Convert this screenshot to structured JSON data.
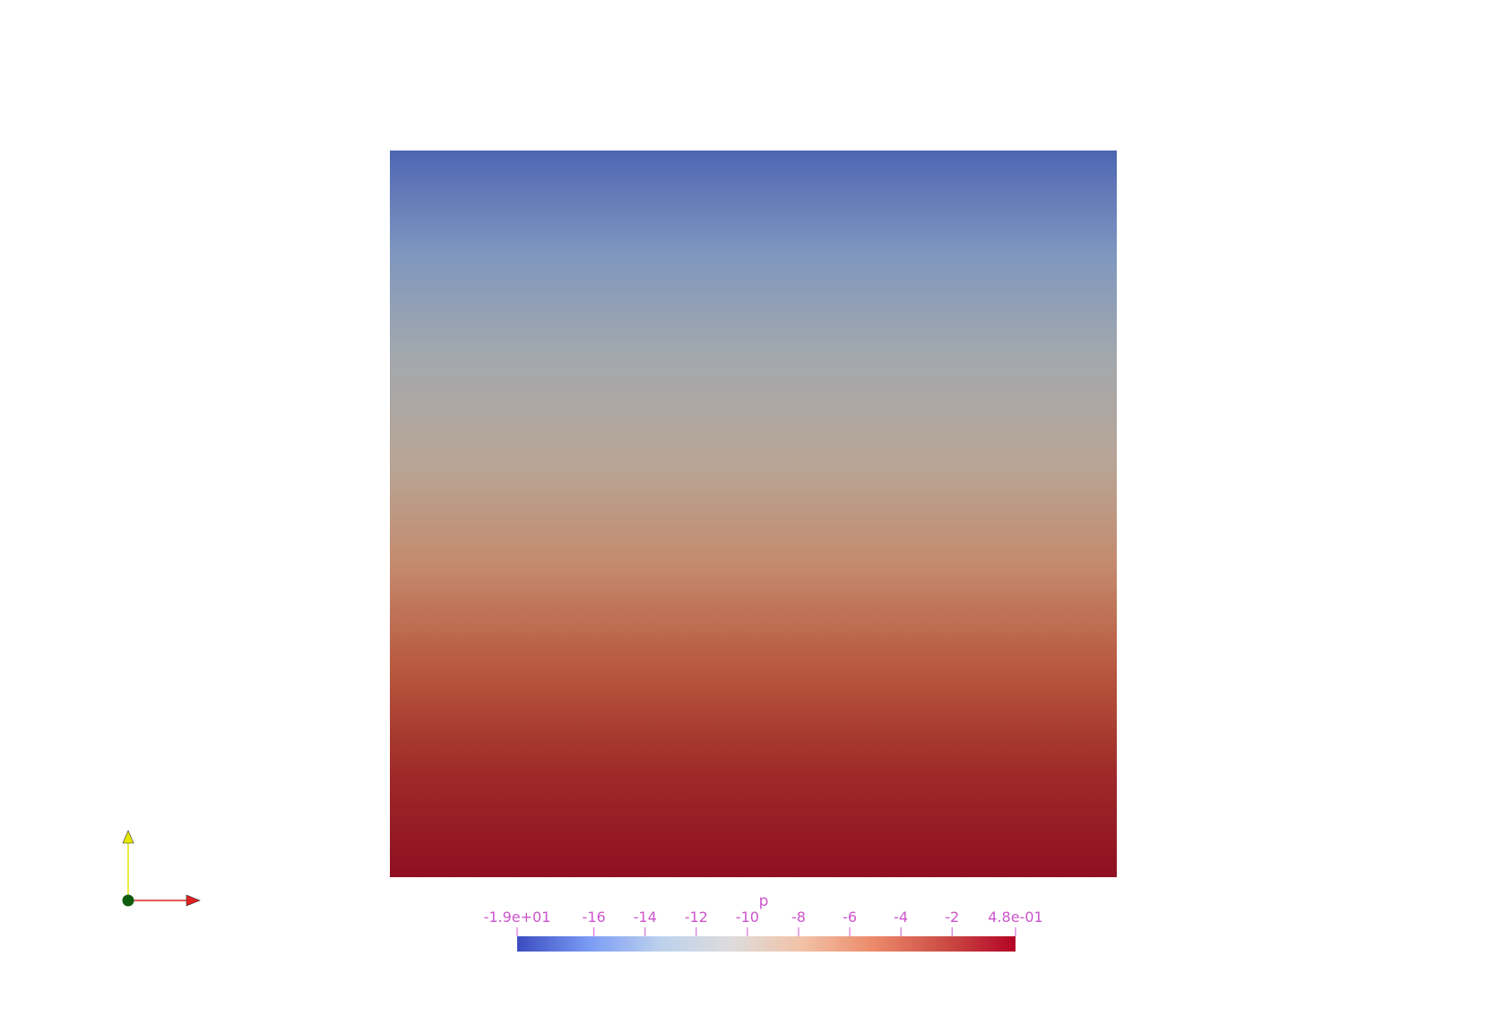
{
  "scene": {
    "field_name": "p",
    "colors": {
      "background": "#ffffff",
      "label_color": "#cc55cc",
      "field_gradient_top_to_bottom": [
        "#4e66b2",
        "#7f97bf",
        "#a3a8ad",
        "#b8a596",
        "#c48a6d",
        "#b8573f",
        "#9e2a28",
        "#8f0f22"
      ],
      "colormap_low_to_high": [
        "#3b4cc0",
        "#7a9bf5",
        "#bcd1ed",
        "#dddcdc",
        "#f2c2a7",
        "#ec8a6a",
        "#cc4d45",
        "#b40426"
      ]
    }
  },
  "colorbar": {
    "title": "p",
    "range": [
      -19,
      0.48
    ],
    "tick_labels": [
      "-1.9e+01",
      "-16",
      "-14",
      "-12",
      "-10",
      "-8",
      "-6",
      "-4",
      "-2",
      "4.8e-01"
    ],
    "tick_values": [
      -19,
      -16,
      -14,
      -12,
      -10,
      -8,
      -6,
      -4,
      -2,
      0.48
    ]
  },
  "orientation_axes": {
    "x_axis_color": "#e02020",
    "y_axis_color": "#e6e600",
    "origin_color": "#0d5c0d",
    "x_arrow_icon": "x-axis-arrow-icon",
    "y_arrow_icon": "y-axis-arrow-icon"
  }
}
